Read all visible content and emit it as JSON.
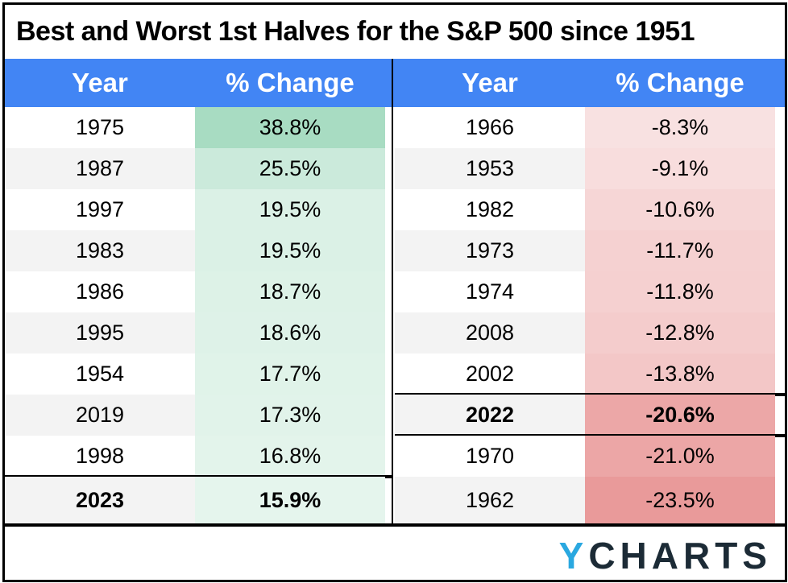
{
  "title": "Best and Worst 1st Halves for the S&P 500 since 1951",
  "headers": {
    "year": "Year",
    "change": "% Change"
  },
  "brand": {
    "logo_y": "Y",
    "logo_rest": "CHARTS"
  },
  "chart_data": {
    "type": "table",
    "title": "Best and Worst 1st Halves for the S&P 500 since 1951",
    "columns": [
      "Year",
      "% Change"
    ],
    "best": [
      {
        "year": "1975",
        "change": "38.8%",
        "value": 38.8
      },
      {
        "year": "1987",
        "change": "25.5%",
        "value": 25.5
      },
      {
        "year": "1997",
        "change": "19.5%",
        "value": 19.5
      },
      {
        "year": "1983",
        "change": "19.5%",
        "value": 19.5
      },
      {
        "year": "1986",
        "change": "18.7%",
        "value": 18.7
      },
      {
        "year": "1995",
        "change": "18.6%",
        "value": 18.6
      },
      {
        "year": "1954",
        "change": "17.7%",
        "value": 17.7
      },
      {
        "year": "2019",
        "change": "17.3%",
        "value": 17.3
      },
      {
        "year": "1998",
        "change": "16.8%",
        "value": 16.8
      },
      {
        "year": "2023",
        "change": "15.9%",
        "value": 15.9,
        "highlight": true
      }
    ],
    "worst": [
      {
        "year": "1966",
        "change": "-8.3%",
        "value": -8.3
      },
      {
        "year": "1953",
        "change": "-9.1%",
        "value": -9.1
      },
      {
        "year": "1982",
        "change": "-10.6%",
        "value": -10.6
      },
      {
        "year": "1973",
        "change": "-11.7%",
        "value": -11.7
      },
      {
        "year": "1974",
        "change": "-11.8%",
        "value": -11.8
      },
      {
        "year": "2008",
        "change": "-12.8%",
        "value": -12.8
      },
      {
        "year": "2002",
        "change": "-13.8%",
        "value": -13.8
      },
      {
        "year": "2022",
        "change": "-20.6%",
        "value": -20.6,
        "highlight": true
      },
      {
        "year": "1970",
        "change": "-21.0%",
        "value": -21.0
      },
      {
        "year": "1962",
        "change": "-23.5%",
        "value": -23.5
      }
    ],
    "colors": {
      "header": "#4285f4",
      "positive": "#a8dcc2",
      "negative": "#e99a9a",
      "logo_accent": "#2aa8e0"
    }
  }
}
